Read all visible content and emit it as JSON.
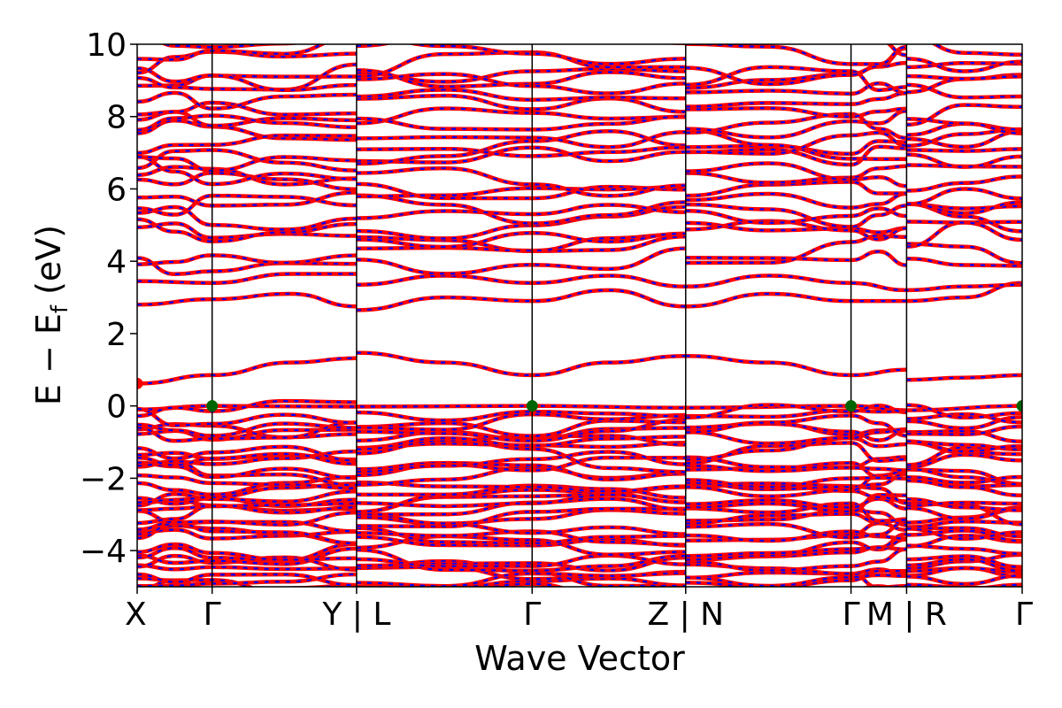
{
  "chart_data": {
    "type": "line",
    "title": "",
    "xlabel": "Wave Vector",
    "ylabel": "E − E_f (eV)",
    "ylabel_main": "E − E",
    "ylabel_sub": "f",
    "ylabel_unit": " (eV)",
    "ylim": [
      -5,
      10
    ],
    "yticks": [
      -4,
      -2,
      0,
      2,
      4,
      6,
      8,
      10
    ],
    "ytick_labels": [
      "−4",
      "−2",
      "0",
      "2",
      "4",
      "6",
      "8",
      "10"
    ],
    "xlim": [
      0,
      1
    ],
    "kpath": [
      {
        "label": "X",
        "x": 0.0
      },
      {
        "label": "Γ",
        "x": 0.0847
      },
      {
        "label": "Y | L",
        "x": 0.2479
      },
      {
        "label": "Γ",
        "x": 0.4463
      },
      {
        "label": "Z | N",
        "x": 0.6198
      },
      {
        "label": "Γ",
        "x": 0.8066
      },
      {
        "label": "M | R",
        "x": 0.8694
      },
      {
        "label": "Γ",
        "x": 1.0
      }
    ],
    "segments": [
      [
        0.0,
        0.2479
      ],
      [
        0.2479,
        0.6198
      ],
      [
        0.6198,
        0.8694
      ],
      [
        0.8694,
        1.0
      ]
    ],
    "grid": false,
    "legend": "none",
    "series": [
      {
        "values": [
          [
            0.0,
            0.62
          ],
          [
            0.0847,
            0.85
          ],
          [
            0.1736,
            1.2
          ],
          [
            0.2479,
            1.32
          ],
          [
            0.2479,
            1.47
          ],
          [
            0.3471,
            1.2
          ],
          [
            0.4463,
            0.85
          ],
          [
            0.5331,
            1.2
          ],
          [
            0.6198,
            1.38
          ],
          [
            0.6198,
            1.38
          ],
          [
            0.7132,
            1.2
          ],
          [
            0.8066,
            0.85
          ],
          [
            0.8694,
            1.0
          ],
          [
            0.8694,
            0.72
          ],
          [
            0.9347,
            0.78
          ],
          [
            1.0,
            0.85
          ]
        ]
      },
      {
        "values": [
          [
            0.0,
            -0.1
          ],
          [
            0.0847,
            0.0
          ],
          [
            0.2479,
            -0.02
          ],
          [
            0.4463,
            0.0
          ],
          [
            0.6198,
            -0.05
          ],
          [
            0.8066,
            0.0
          ],
          [
            0.8694,
            -0.12
          ],
          [
            1.0,
            0.0
          ]
        ]
      },
      {
        "values": [
          [
            0.0,
            2.8
          ],
          [
            0.0847,
            2.95
          ],
          [
            0.1736,
            3.1
          ],
          [
            0.2479,
            2.75
          ],
          [
            0.2479,
            2.65
          ],
          [
            0.3471,
            3.0
          ],
          [
            0.4463,
            2.9
          ],
          [
            0.5331,
            3.2
          ],
          [
            0.6198,
            2.75
          ],
          [
            0.7132,
            3.1
          ],
          [
            0.8066,
            2.9
          ],
          [
            0.8694,
            2.9
          ],
          [
            0.9347,
            3.0
          ],
          [
            1.0,
            3.4
          ]
        ]
      },
      {
        "values": [
          [
            0.0,
            3.45
          ],
          [
            0.0847,
            3.4
          ],
          [
            0.1736,
            3.65
          ],
          [
            0.2479,
            3.65
          ],
          [
            0.2479,
            3.35
          ],
          [
            0.3471,
            3.6
          ],
          [
            0.4463,
            3.4
          ],
          [
            0.5331,
            3.6
          ],
          [
            0.6198,
            3.3
          ],
          [
            0.7132,
            3.6
          ],
          [
            0.8066,
            3.4
          ],
          [
            0.8694,
            3.2
          ],
          [
            0.9347,
            3.3
          ],
          [
            1.0,
            3.35
          ]
        ]
      }
    ],
    "points": [
      {
        "color": "#ff0000",
        "x": 0.0,
        "y": 0.62
      },
      {
        "color": "#006400",
        "x": 0.0847,
        "y": 0.0
      },
      {
        "color": "#006400",
        "x": 0.4463,
        "y": 0.0
      },
      {
        "color": "#006400",
        "x": 0.8066,
        "y": 0.0
      },
      {
        "color": "#006400",
        "x": 1.0,
        "y": 0.0
      }
    ],
    "colors": {
      "primary": "#ff0000",
      "secondary": "#0000ff",
      "cbm": "#ff0000",
      "vbm": "#006400"
    }
  }
}
